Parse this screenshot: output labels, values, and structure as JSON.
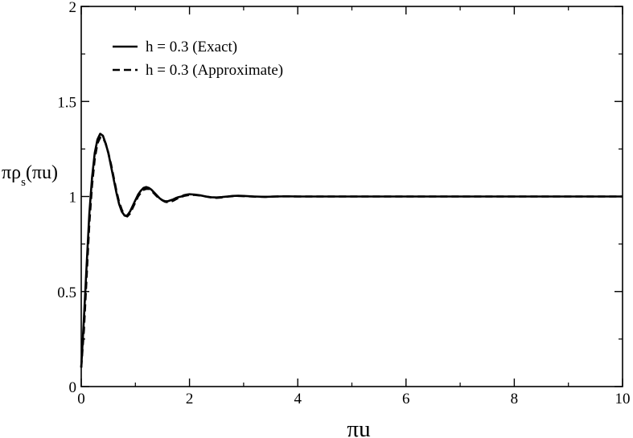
{
  "chart_data": {
    "type": "line",
    "xlabel": "πu",
    "ylabel": {
      "prefix": "πρ",
      "subscript": "s",
      "suffix": "(πu)"
    },
    "xlim": [
      0,
      10
    ],
    "ylim": [
      0,
      2
    ],
    "xticks": [
      0,
      2,
      4,
      6,
      8,
      10
    ],
    "yticks": [
      0,
      0.5,
      1,
      1.5,
      2
    ],
    "ytick_labels": [
      "0",
      "0.5",
      "1",
      "1.5",
      "2"
    ],
    "grid": false,
    "legend_position": "top-left",
    "series": [
      {
        "name": "h = 0.3 (Exact)",
        "style": "solid",
        "color": "#000000",
        "x": [
          0.0,
          0.05,
          0.1,
          0.15,
          0.2,
          0.25,
          0.3,
          0.35,
          0.4,
          0.45,
          0.5,
          0.55,
          0.6,
          0.65,
          0.7,
          0.75,
          0.8,
          0.85,
          0.9,
          0.95,
          1.0,
          1.05,
          1.1,
          1.15,
          1.2,
          1.25,
          1.3,
          1.35,
          1.4,
          1.45,
          1.5,
          1.55,
          1.6,
          1.65,
          1.7,
          1.75,
          1.8,
          1.85,
          1.9,
          1.95,
          2.0,
          2.1,
          2.2,
          2.3,
          2.4,
          2.5,
          2.6,
          2.7,
          2.8,
          2.9,
          3.0,
          3.2,
          3.4,
          3.6,
          3.8,
          4.0,
          4.5,
          5.0,
          5.5,
          6.0,
          6.5,
          7.0,
          7.5,
          8.0,
          8.5,
          9.0,
          9.5,
          10.0
        ],
        "y": [
          0.1,
          0.36,
          0.64,
          0.91,
          1.1,
          1.23,
          1.3,
          1.33,
          1.32,
          1.28,
          1.23,
          1.16,
          1.09,
          1.02,
          0.96,
          0.92,
          0.9,
          0.9,
          0.92,
          0.95,
          0.98,
          1.01,
          1.03,
          1.045,
          1.05,
          1.045,
          1.035,
          1.02,
          1.005,
          0.99,
          0.98,
          0.975,
          0.975,
          0.98,
          0.985,
          0.992,
          0.997,
          1.0,
          1.007,
          1.01,
          1.012,
          1.01,
          1.006,
          1.0,
          0.996,
          0.995,
          0.997,
          1.0,
          1.003,
          1.004,
          1.003,
          1.0,
          0.998,
          1.0,
          1.001,
          1.0,
          1.0,
          1.0,
          1.0,
          1.0,
          1.0,
          1.0,
          1.0,
          1.0,
          1.0,
          1.0,
          1.0,
          1.0
        ]
      },
      {
        "name": "h = 0.3 (Approximate)",
        "style": "dashed",
        "color": "#000000",
        "x": [
          0.0,
          0.05,
          0.1,
          0.15,
          0.2,
          0.25,
          0.3,
          0.35,
          0.4,
          0.45,
          0.5,
          0.55,
          0.6,
          0.65,
          0.7,
          0.75,
          0.8,
          0.85,
          0.9,
          0.95,
          1.0,
          1.05,
          1.1,
          1.15,
          1.2,
          1.25,
          1.3,
          1.35,
          1.4,
          1.45,
          1.5,
          1.55,
          1.6,
          1.65,
          1.7,
          1.75,
          1.8,
          1.85,
          1.9,
          1.95,
          2.0,
          2.1,
          2.2,
          2.3,
          2.4,
          2.5,
          2.6,
          2.7,
          2.8,
          2.9,
          3.0,
          3.2,
          3.4,
          3.6,
          3.8,
          4.0,
          4.5,
          5.0,
          5.5,
          6.0,
          6.5,
          7.0,
          7.5,
          8.0,
          8.5,
          9.0,
          9.5,
          10.0
        ],
        "y": [
          0.1,
          0.3,
          0.58,
          0.86,
          1.06,
          1.2,
          1.28,
          1.31,
          1.31,
          1.28,
          1.23,
          1.17,
          1.1,
          1.03,
          0.97,
          0.93,
          0.9,
          0.895,
          0.91,
          0.94,
          0.97,
          1.0,
          1.02,
          1.035,
          1.04,
          1.04,
          1.03,
          1.015,
          1.0,
          0.99,
          0.98,
          0.972,
          0.97,
          0.972,
          0.978,
          0.986,
          0.993,
          0.998,
          1.003,
          1.006,
          1.008,
          1.008,
          1.005,
          1.0,
          0.995,
          0.993,
          0.995,
          0.999,
          1.002,
          1.003,
          1.002,
          0.999,
          0.998,
          1.0,
          1.001,
          1.0,
          1.0,
          1.0,
          1.0,
          1.0,
          1.0,
          1.0,
          1.0,
          1.0,
          1.0,
          1.0,
          1.0,
          1.0
        ]
      }
    ]
  }
}
